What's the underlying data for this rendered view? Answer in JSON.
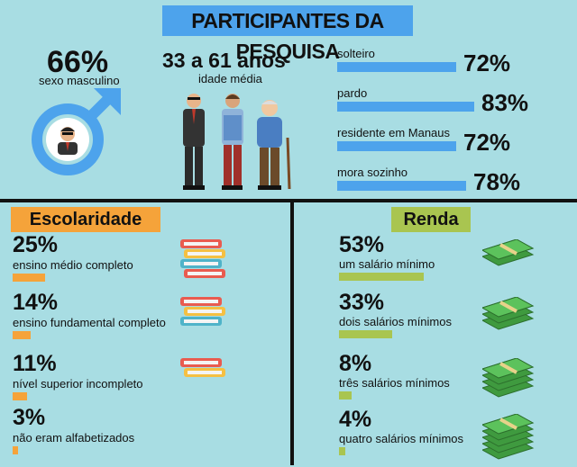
{
  "title": "PARTICIPANTES DA PESQUISA",
  "gender": {
    "pct": "66%",
    "label": "sexo masculino"
  },
  "age": {
    "range": "33 a 61 anos",
    "label": "idade média"
  },
  "stats": [
    {
      "label": "solteiro",
      "pct": "72%",
      "value": 0.72
    },
    {
      "label": "pardo",
      "pct": "83%",
      "value": 0.83
    },
    {
      "label": "residente em Manaus",
      "pct": "72%",
      "value": 0.72
    },
    {
      "label": "mora sozinho",
      "pct": "78%",
      "value": 0.78
    }
  ],
  "education": {
    "title": "Escolaridade",
    "items": [
      {
        "pct": "25%",
        "label": "ensino médio completo",
        "value": 0.25
      },
      {
        "pct": "14%",
        "label": "ensino fundamental completo",
        "value": 0.14
      },
      {
        "pct": "11%",
        "label": "nível superior incompleto",
        "value": 0.11
      },
      {
        "pct": "3%",
        "label": "não eram alfabetizados",
        "value": 0.03
      }
    ]
  },
  "income": {
    "title": "Renda",
    "items": [
      {
        "pct": "53%",
        "label": "um salário mínimo",
        "value": 0.53
      },
      {
        "pct": "33%",
        "label": "dois salários mínimos",
        "value": 0.33
      },
      {
        "pct": "8%",
        "label": "três salários mínimos",
        "value": 0.08
      },
      {
        "pct": "4%",
        "label": "quatro salários mínimos",
        "value": 0.04
      }
    ]
  },
  "colors": {
    "background": "#a8dde3",
    "blue": "#4da3ec",
    "orange": "#f5a33a",
    "green": "#a9c550",
    "dark": "#111111"
  },
  "icons": [
    "male-symbol-icon",
    "businessman-avatar-icon",
    "three-men-illustration",
    "books-stack-icon",
    "money-stack-icon"
  ]
}
